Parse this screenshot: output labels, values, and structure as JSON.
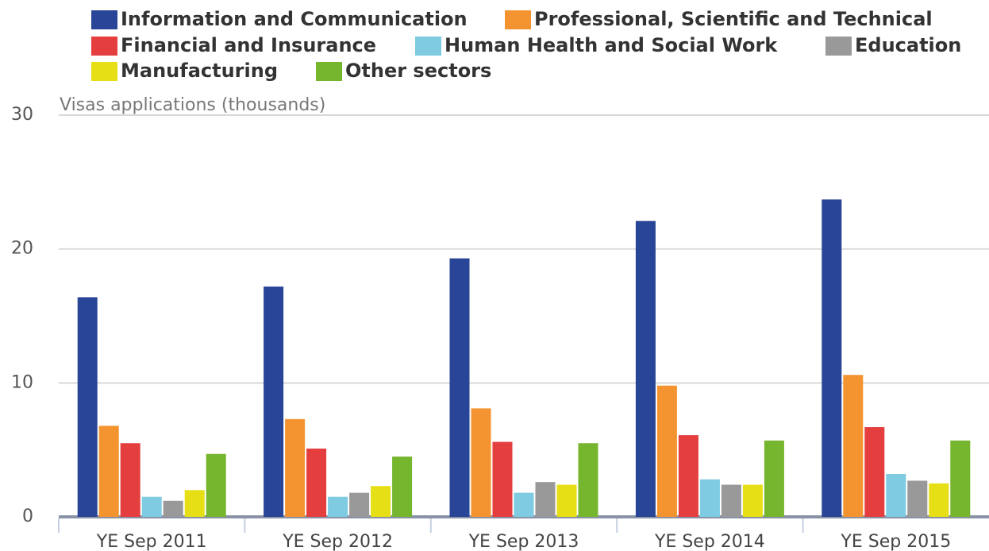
{
  "chart_data": {
    "type": "bar",
    "y_label": "Visas applications (thousands)",
    "categories": [
      "YE Sep 2011",
      "YE Sep 2012",
      "YE Sep 2013",
      "YE Sep 2014",
      "YE Sep 2015"
    ],
    "series": [
      {
        "name": "Information and Communication",
        "color": "#284597",
        "values": [
          16.4,
          17.2,
          19.3,
          22.1,
          23.7
        ]
      },
      {
        "name": "Professional, Scientific and Technical",
        "color": "#f39431",
        "values": [
          6.8,
          7.3,
          8.1,
          9.8,
          10.6
        ]
      },
      {
        "name": "Financial and Insurance",
        "color": "#e53e3e",
        "values": [
          5.5,
          5.1,
          5.6,
          6.1,
          6.7
        ]
      },
      {
        "name": "Human Health and Social Work",
        "color": "#7ecbe2",
        "values": [
          1.5,
          1.5,
          1.8,
          2.8,
          3.2
        ]
      },
      {
        "name": "Education",
        "color": "#999999",
        "values": [
          1.2,
          1.8,
          2.6,
          2.4,
          2.7
        ]
      },
      {
        "name": "Manufacturing",
        "color": "#e6df16",
        "values": [
          2.0,
          2.3,
          2.4,
          2.4,
          2.5
        ]
      },
      {
        "name": "Other sectors",
        "color": "#76b52e",
        "values": [
          4.7,
          4.5,
          5.5,
          5.7,
          5.7
        ]
      }
    ],
    "ylim": [
      0,
      30
    ],
    "yticks": [
      0,
      10,
      20,
      30
    ],
    "grid": true
  }
}
